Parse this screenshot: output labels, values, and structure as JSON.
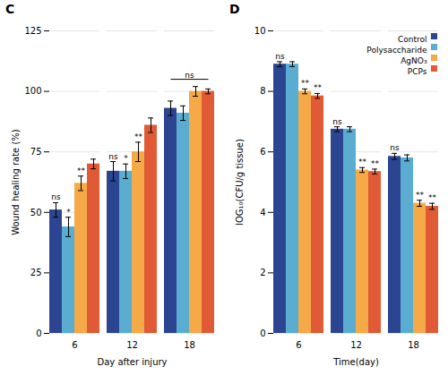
{
  "chart_data": [
    {
      "type": "bar",
      "title": "C",
      "categories": [
        "6",
        "12",
        "18"
      ],
      "series": [
        {
          "name": "Control",
          "color": "#2B4590",
          "values": [
            51,
            67,
            93
          ],
          "errors": [
            3,
            4,
            3
          ]
        },
        {
          "name": "Polysaccharide",
          "color": "#5BACD1",
          "values": [
            44,
            67,
            91
          ],
          "errors": [
            4,
            3,
            3
          ]
        },
        {
          "name": "AgNO₃",
          "color": "#F5A947",
          "values": [
            62,
            75,
            100
          ],
          "errors": [
            3,
            4,
            2
          ]
        },
        {
          "name": "PCPs",
          "color": "#E05A36",
          "values": [
            70,
            86,
            100
          ],
          "errors": [
            2,
            3,
            1
          ]
        }
      ],
      "xlabel": "Day after injury",
      "ylabel": "Wound healing rate (%)",
      "ylim": [
        0,
        125
      ],
      "yticks": [
        0,
        25,
        50,
        75,
        100,
        125
      ],
      "grid": true,
      "annotations": [
        {
          "category": "6",
          "series": "Control",
          "text": "ns"
        },
        {
          "category": "6",
          "series": "Polysaccharide",
          "text": "*"
        },
        {
          "category": "6",
          "series": "AgNO₃",
          "text": "**"
        },
        {
          "category": "12",
          "series": "Control",
          "text": "ns"
        },
        {
          "category": "12",
          "series": "Polysaccharide",
          "text": "*"
        },
        {
          "category": "12",
          "series": "AgNO₃",
          "text": "**"
        },
        {
          "category": "18",
          "from": "Control",
          "to": "PCPs",
          "y": 105,
          "text": "ns"
        }
      ]
    },
    {
      "type": "bar",
      "title": "D",
      "categories": [
        "6",
        "12",
        "18"
      ],
      "series": [
        {
          "name": "Control",
          "color": "#2B4590",
          "values": [
            8.9,
            6.75,
            5.85
          ],
          "errors": [
            0.08,
            0.08,
            0.1
          ]
        },
        {
          "name": "Polysaccharide",
          "color": "#5BACD1",
          "values": [
            8.9,
            6.75,
            5.8
          ],
          "errors": [
            0.08,
            0.08,
            0.1
          ]
        },
        {
          "name": "AgNO₃",
          "color": "#F5A947",
          "values": [
            8.0,
            5.4,
            4.3
          ],
          "errors": [
            0.08,
            0.08,
            0.1
          ]
        },
        {
          "name": "PCPs",
          "color": "#E05A36",
          "values": [
            7.85,
            5.35,
            4.2
          ],
          "errors": [
            0.08,
            0.08,
            0.1
          ]
        }
      ],
      "xlabel": "Time(day)",
      "ylabel": "lOG₁₀(CFU/g tissue)",
      "ylim": [
        0,
        10
      ],
      "yticks": [
        0,
        2,
        4,
        6,
        8,
        10
      ],
      "grid": true,
      "legend": "upper right",
      "annotations": [
        {
          "category": "6",
          "series": "Control",
          "text": "ns"
        },
        {
          "category": "6",
          "series": "AgNO₃",
          "text": "**"
        },
        {
          "category": "6",
          "series": "PCPs",
          "text": "**"
        },
        {
          "category": "12",
          "series": "Control",
          "text": "ns"
        },
        {
          "category": "12",
          "series": "AgNO₃",
          "text": "**"
        },
        {
          "category": "12",
          "series": "PCPs",
          "text": "**"
        },
        {
          "category": "18",
          "series": "Control",
          "text": "ns"
        },
        {
          "category": "18",
          "series": "AgNO₃",
          "text": "**"
        },
        {
          "category": "18",
          "series": "PCPs",
          "text": "**"
        }
      ]
    }
  ]
}
